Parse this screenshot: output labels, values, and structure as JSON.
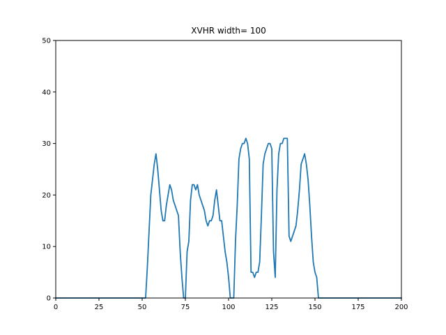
{
  "chart_data": {
    "type": "line",
    "title": "XVHR width= 100",
    "xlabel": "",
    "ylabel": "",
    "xlim": [
      0,
      200
    ],
    "ylim": [
      0,
      50
    ],
    "xticks": [
      0,
      25,
      50,
      75,
      100,
      125,
      150,
      175,
      200
    ],
    "yticks": [
      0,
      10,
      20,
      30,
      40,
      50
    ],
    "grid": false,
    "legend": "none",
    "line_color": "#1f77b4",
    "series": [
      {
        "x": [
          0,
          1,
          2,
          3,
          4,
          5,
          6,
          7,
          8,
          9,
          10,
          11,
          12,
          13,
          14,
          15,
          16,
          17,
          18,
          19,
          20,
          21,
          22,
          23,
          24,
          25,
          26,
          27,
          28,
          29,
          30,
          31,
          32,
          33,
          34,
          35,
          36,
          37,
          38,
          39,
          40,
          41,
          42,
          43,
          44,
          45,
          46,
          47,
          48,
          49,
          50,
          51,
          52,
          53,
          54,
          55,
          56,
          57,
          58,
          59,
          60,
          61,
          62,
          63,
          64,
          65,
          66,
          67,
          68,
          69,
          70,
          71,
          72,
          73,
          74,
          75,
          76,
          77,
          78,
          79,
          80,
          81,
          82,
          83,
          84,
          85,
          86,
          87,
          88,
          89,
          90,
          91,
          92,
          93,
          94,
          95,
          96,
          97,
          98,
          99,
          100,
          101,
          102,
          103,
          104,
          105,
          106,
          107,
          108,
          109,
          110,
          111,
          112,
          113,
          114,
          115,
          116,
          117,
          118,
          119,
          120,
          121,
          122,
          123,
          124,
          125,
          126,
          127,
          128,
          129,
          130,
          131,
          132,
          133,
          134,
          135,
          136,
          137,
          138,
          139,
          140,
          141,
          142,
          143,
          144,
          145,
          146,
          147,
          148,
          149,
          150,
          151,
          152,
          153,
          154,
          155,
          156,
          157,
          158,
          159,
          160,
          161,
          162,
          163,
          164,
          165,
          166,
          167,
          168,
          169,
          170,
          171,
          172,
          173,
          174,
          175,
          176,
          177,
          178,
          179,
          180,
          181,
          182,
          183,
          184,
          185,
          186,
          187,
          188,
          189,
          190,
          191,
          192,
          193,
          194,
          195,
          196,
          197,
          198,
          199,
          200
        ],
        "values": [
          0,
          0,
          0,
          0,
          0,
          0,
          0,
          0,
          0,
          0,
          0,
          0,
          0,
          0,
          0,
          0,
          0,
          0,
          0,
          0,
          0,
          0,
          0,
          0,
          0,
          0,
          0,
          0,
          0,
          0,
          0,
          0,
          0,
          0,
          0,
          0,
          0,
          0,
          0,
          0,
          0,
          0,
          0,
          0,
          0,
          0,
          0,
          0,
          0,
          0,
          0,
          0,
          0,
          6,
          13,
          20,
          23,
          26,
          28,
          25,
          21,
          17,
          15,
          15,
          18,
          20,
          22,
          21,
          19,
          18,
          17,
          16,
          9,
          4,
          0,
          0,
          9,
          11,
          19,
          22,
          22,
          21,
          22,
          20,
          19,
          18,
          17,
          15,
          14,
          15,
          15,
          16,
          19,
          21,
          18,
          15,
          15,
          12,
          9,
          7,
          4,
          0,
          0,
          0,
          11,
          18,
          27,
          29,
          30,
          30,
          31,
          30,
          27,
          5,
          5,
          4,
          5,
          5,
          7,
          16,
          26,
          28,
          29,
          30,
          30,
          29,
          9,
          4,
          21,
          28,
          30,
          30,
          31,
          31,
          31,
          12,
          11,
          12,
          13,
          14,
          17,
          21,
          26,
          27,
          28,
          26,
          23,
          18,
          12,
          7,
          5,
          4,
          0,
          0,
          0,
          0,
          0,
          0,
          0,
          0,
          0,
          0,
          0,
          0,
          0,
          0,
          0,
          0,
          0,
          0,
          0,
          0,
          0,
          0,
          0,
          0,
          0,
          0,
          0,
          0,
          0,
          0,
          0,
          0,
          0,
          0,
          0,
          0,
          0,
          0,
          0,
          0,
          0,
          0,
          0,
          0,
          0,
          0,
          0,
          0,
          0
        ]
      }
    ]
  }
}
